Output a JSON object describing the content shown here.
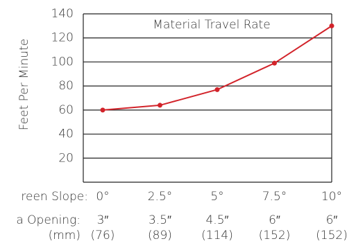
{
  "chart_data": {
    "type": "line",
    "title": "Material Travel Rate",
    "ylabel": "Feet Per Minute",
    "categories": [
      "0°",
      "2.5°",
      "5°",
      "7.5°",
      "10°"
    ],
    "row_labels": [
      "reen Slope:",
      "a Opening:",
      "(mm)"
    ],
    "openings": [
      "3″",
      "3.5″",
      "4.5″",
      "6″",
      "6″"
    ],
    "openings_mm": [
      "(76)",
      "(89)",
      "(114)",
      "(152)",
      "(152)"
    ],
    "series": [
      {
        "name": "Material Travel Rate",
        "color": "#d2232a",
        "values": [
          60,
          64,
          77,
          99,
          130
        ]
      }
    ],
    "ylim": [
      0,
      140
    ],
    "yticks": [
      20,
      40,
      60,
      80,
      100,
      120,
      140
    ],
    "grid": true
  }
}
